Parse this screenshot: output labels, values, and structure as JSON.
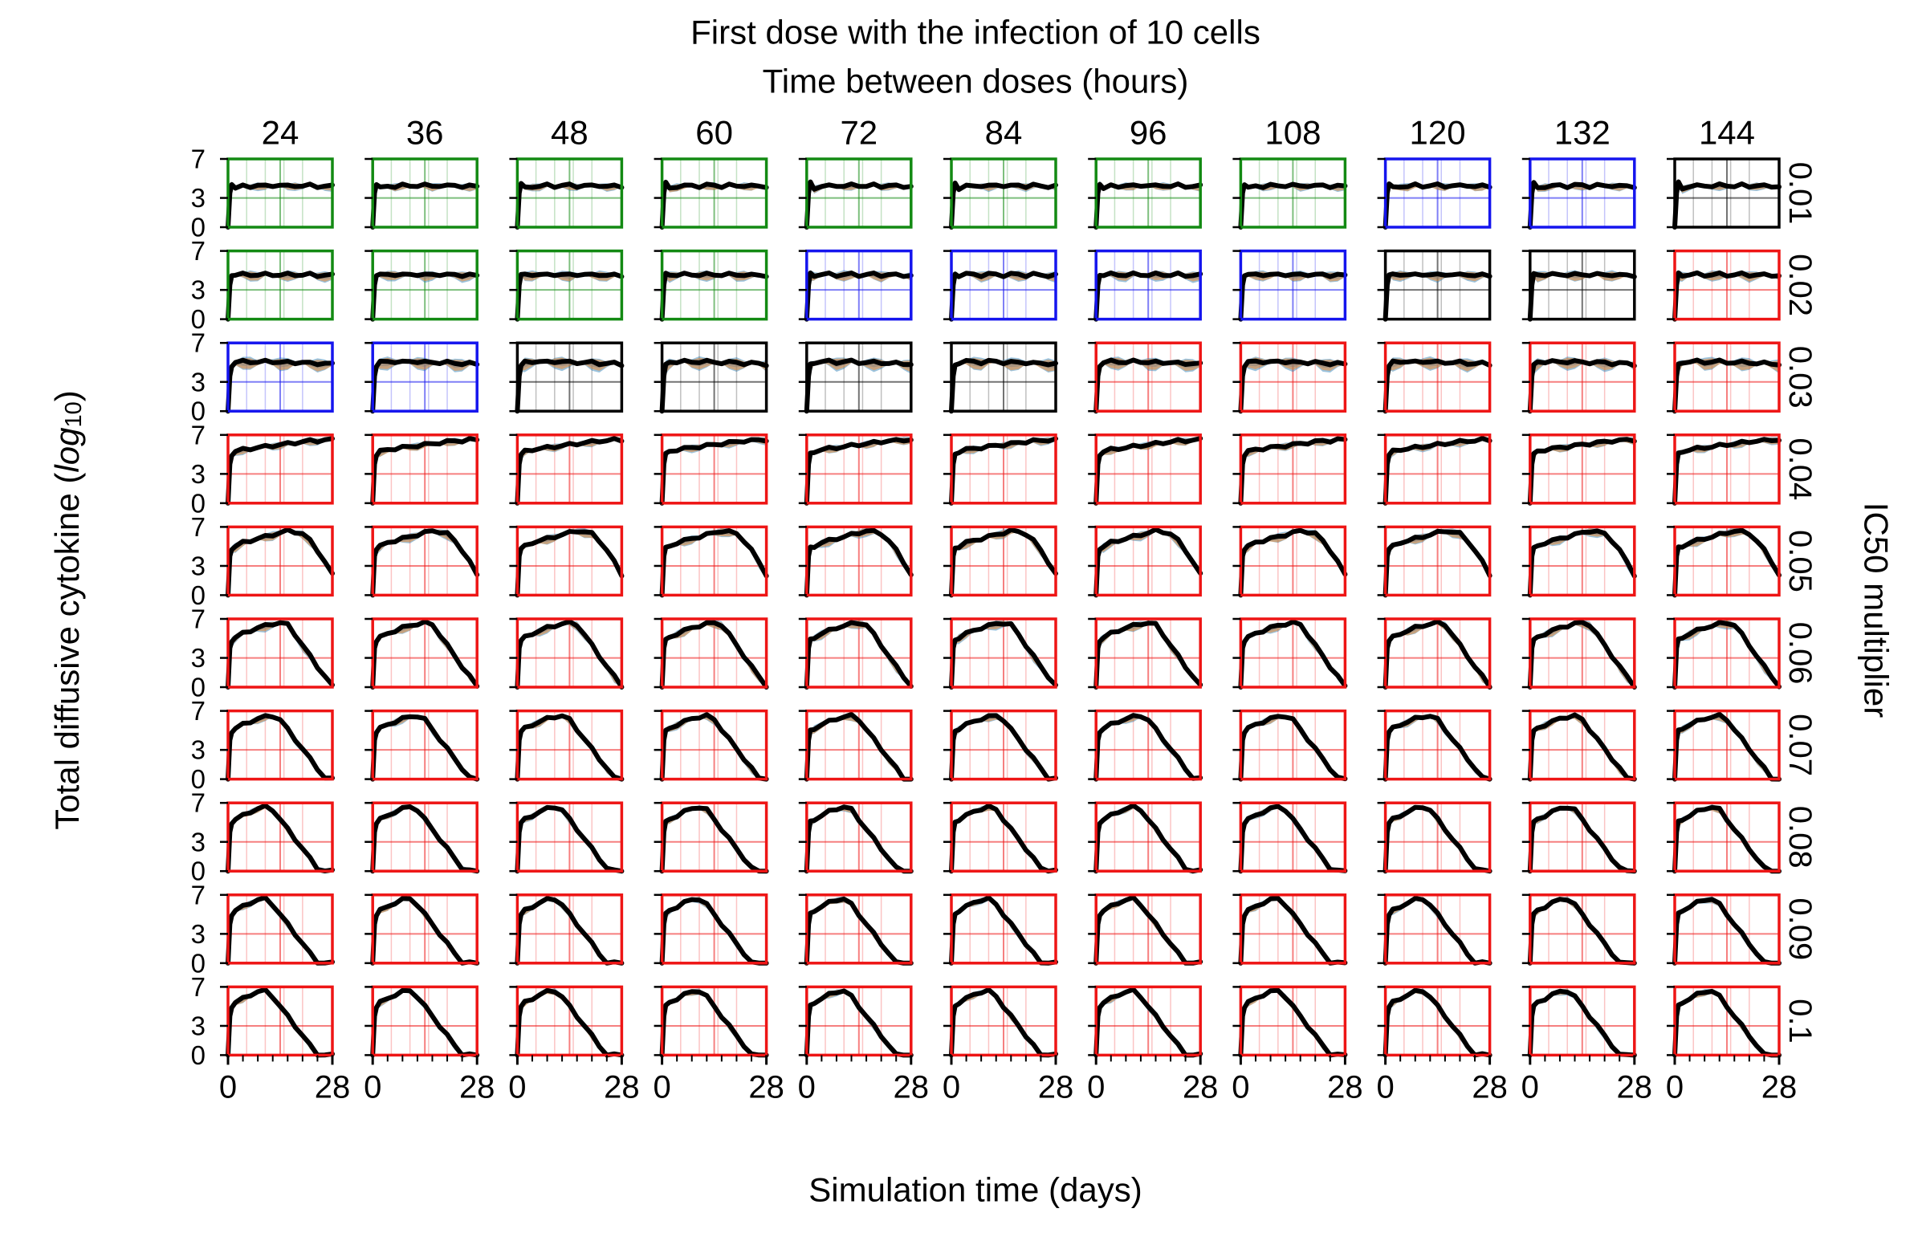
{
  "figure": {
    "title_line1": "First dose with the infection of 10 cells",
    "title_line2": "Time between doses (hours)",
    "xlabel": "Simulation time (days)",
    "ylabel_prefix": "Total diffusive cytokine (",
    "ylabel_log": "log",
    "ylabel_sub": "10",
    "ylabel_suffix": ")",
    "right_label": "IC50 multiplier"
  },
  "chart_data": {
    "type": "line",
    "layout": "small-multiples grid",
    "columns": [
      "24",
      "36",
      "48",
      "60",
      "72",
      "84",
      "96",
      "108",
      "120",
      "132",
      "144"
    ],
    "rows": [
      "0.01",
      "0.02",
      "0.03",
      "0.04",
      "0.05",
      "0.06",
      "0.07",
      "0.08",
      "0.09",
      "0.1"
    ],
    "xlim": [
      0,
      28
    ],
    "x_ticks": [
      "0",
      "28"
    ],
    "ylim": [
      0,
      7
    ],
    "y_ticks": [
      "0",
      "3",
      "7"
    ],
    "series_colors": {
      "mean": "#000000",
      "band_a": "#1f77b4",
      "band_b": "#ff7f0e",
      "band_c": "#808080"
    },
    "frame_colors": {
      "G": "#138a13",
      "B": "#1515ee",
      "K": "#000000",
      "R": "#ee1515"
    },
    "frames": [
      [
        "G",
        "G",
        "G",
        "G",
        "G",
        "G",
        "G",
        "G",
        "B",
        "B",
        "K"
      ],
      [
        "G",
        "G",
        "G",
        "G",
        "B",
        "B",
        "B",
        "B",
        "K",
        "K",
        "R"
      ],
      [
        "B",
        "B",
        "K",
        "K",
        "K",
        "K",
        "R",
        "R",
        "R",
        "R",
        "R"
      ],
      [
        "R",
        "R",
        "R",
        "R",
        "R",
        "R",
        "R",
        "R",
        "R",
        "R",
        "R"
      ],
      [
        "R",
        "R",
        "R",
        "R",
        "R",
        "R",
        "R",
        "R",
        "R",
        "R",
        "R"
      ],
      [
        "R",
        "R",
        "R",
        "R",
        "R",
        "R",
        "R",
        "R",
        "R",
        "R",
        "R"
      ],
      [
        "R",
        "R",
        "R",
        "R",
        "R",
        "R",
        "R",
        "R",
        "R",
        "R",
        "R"
      ],
      [
        "R",
        "R",
        "R",
        "R",
        "R",
        "R",
        "R",
        "R",
        "R",
        "R",
        "R"
      ],
      [
        "R",
        "R",
        "R",
        "R",
        "R",
        "R",
        "R",
        "R",
        "R",
        "R",
        "R"
      ],
      [
        "R",
        "R",
        "R",
        "R",
        "R",
        "R",
        "R",
        "R",
        "R",
        "R",
        "R"
      ]
    ],
    "curve_x": [
      0,
      0.5,
      1,
      2,
      4,
      6,
      8,
      10,
      12,
      14,
      16,
      18,
      20,
      22,
      24,
      26,
      28
    ],
    "row_curves": [
      {
        "mean": [
          0,
          3.5,
          4.5,
          4.0,
          4.2,
          4.2,
          4.3,
          4.2,
          4.3,
          4.3,
          4.2,
          4.3,
          4.2,
          4.3,
          4.2,
          4.2,
          4.2
        ],
        "band": 0.6
      },
      {
        "mean": [
          0,
          3.5,
          4.6,
          4.5,
          4.6,
          4.6,
          4.5,
          4.6,
          4.6,
          4.5,
          4.6,
          4.6,
          4.5,
          4.6,
          4.5,
          4.5,
          4.5
        ],
        "band": 0.8
      },
      {
        "mean": [
          0,
          3.6,
          4.7,
          5.0,
          5.1,
          5.1,
          5.0,
          5.1,
          5.1,
          5.0,
          5.0,
          5.0,
          5.0,
          4.9,
          4.9,
          4.9,
          4.8
        ],
        "band": 1.0
      },
      {
        "mean": [
          0,
          4.0,
          5.0,
          5.3,
          5.5,
          5.6,
          5.7,
          5.8,
          5.9,
          6.0,
          6.1,
          6.2,
          6.3,
          6.4,
          6.4,
          6.5,
          6.5
        ],
        "band": 0.6
      },
      {
        "mean": [
          0,
          4.0,
          4.8,
          5.0,
          5.4,
          5.6,
          5.8,
          6.0,
          6.2,
          6.4,
          6.6,
          6.5,
          6.3,
          5.6,
          4.6,
          3.4,
          2.1
        ],
        "band": 0.7
      },
      {
        "mean": [
          0,
          4.0,
          4.8,
          5.1,
          5.5,
          5.8,
          6.1,
          6.3,
          6.5,
          6.6,
          6.4,
          5.4,
          4.3,
          3.2,
          2.1,
          1.1,
          0.1
        ],
        "band": 0.7
      },
      {
        "mean": [
          0,
          4.0,
          4.9,
          5.2,
          5.6,
          5.9,
          6.2,
          6.4,
          6.5,
          6.1,
          5.1,
          4.1,
          3.1,
          2.1,
          1.1,
          0.1,
          0
        ],
        "band": 0.6
      },
      {
        "mean": [
          0,
          4.0,
          5.0,
          5.3,
          5.7,
          6.1,
          6.4,
          6.6,
          6.3,
          5.3,
          4.3,
          3.3,
          2.3,
          1.3,
          0.3,
          0,
          0
        ],
        "band": 0.5
      },
      {
        "mean": [
          0,
          4.0,
          5.0,
          5.4,
          5.8,
          6.2,
          6.5,
          6.6,
          6.0,
          5.0,
          4.0,
          3.0,
          2.0,
          1.0,
          0,
          0,
          0
        ],
        "band": 0.5
      },
      {
        "mean": [
          0,
          4.0,
          5.0,
          5.4,
          5.8,
          6.2,
          6.5,
          6.6,
          6.0,
          5.0,
          4.0,
          3.0,
          2.0,
          1.0,
          0,
          0,
          0
        ],
        "band": 0.5
      }
    ]
  }
}
